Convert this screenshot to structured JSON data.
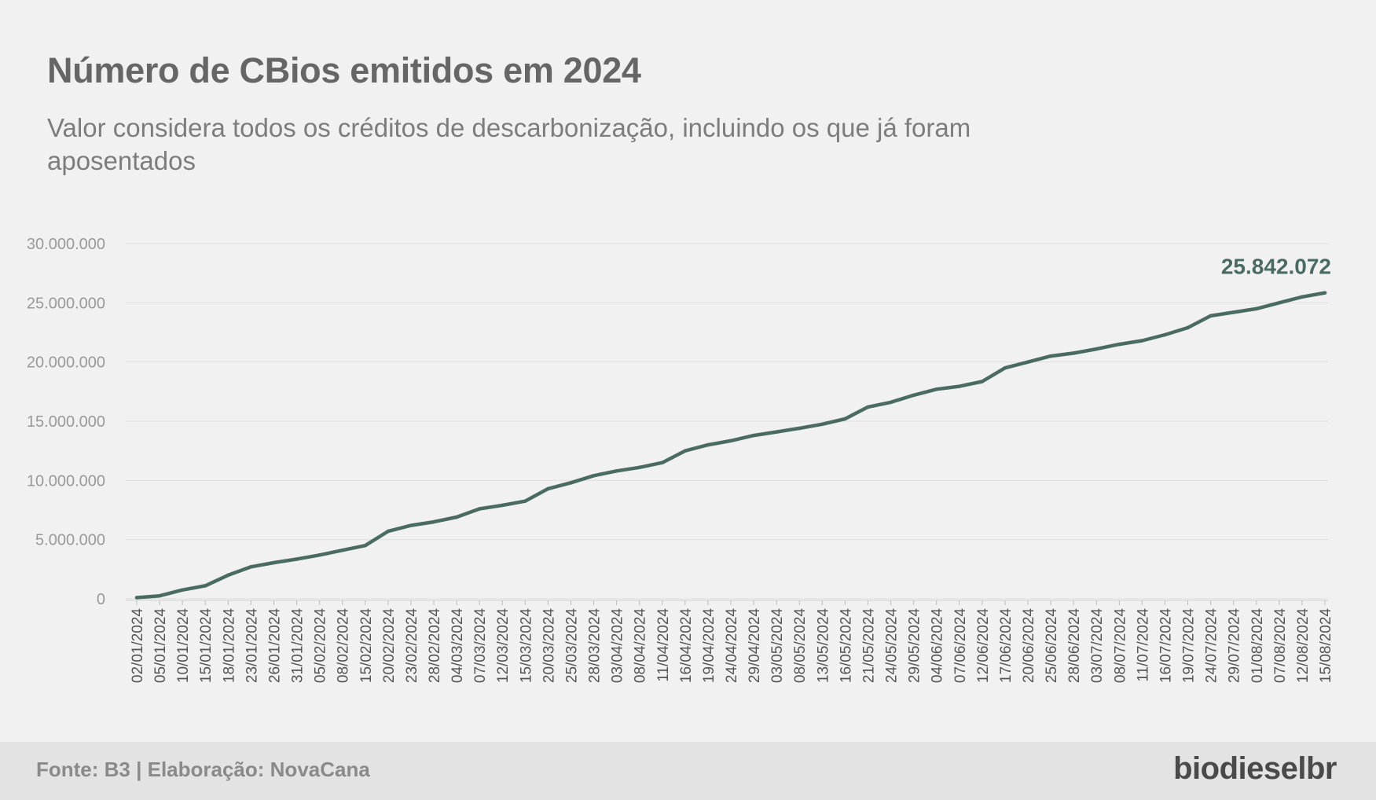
{
  "header": {
    "title": "Número de CBios emitidos em 2024",
    "subtitle": "Valor considera todos os créditos de descarbonização, incluindo os que já foram aposentados"
  },
  "footer": {
    "source": "Fonte: B3 | Elaboração: NovaCana",
    "logo_text": "biodieselbr"
  },
  "colors": {
    "line": "#4a6b63",
    "grid": "#dedede",
    "tick_text": "#999999",
    "date_text": "#555555",
    "background": "#f1f1f1"
  },
  "chart_data": {
    "type": "line",
    "title": "Número de CBios emitidos em 2024",
    "subtitle": "Valor considera todos os créditos de descarbonização, incluindo os que já foram aposentados",
    "xlabel": "",
    "ylabel": "",
    "ylim": [
      0,
      30000000
    ],
    "yticks": [
      0,
      5000000,
      10000000,
      15000000,
      20000000,
      25000000,
      30000000
    ],
    "ytick_labels": [
      "0",
      "5.000.000",
      "10.000.000",
      "15.000.000",
      "20.000.000",
      "25.000.000",
      "30.000.000"
    ],
    "grid": true,
    "end_label": "25.842.072",
    "x_tick_labels": [
      "02/01/2024",
      "05/01/2024",
      "10/01/2024",
      "15/01/2024",
      "18/01/2024",
      "23/01/2024",
      "26/01/2024",
      "31/01/2024",
      "05/02/2024",
      "08/02/2024",
      "15/02/2024",
      "20/02/2024",
      "23/02/2024",
      "28/02/2024",
      "04/03/2024",
      "07/03/2024",
      "12/03/2024",
      "15/03/2024",
      "20/03/2024",
      "25/03/2024",
      "28/03/2024",
      "03/04/2024",
      "08/04/2024",
      "11/04/2024",
      "16/04/2024",
      "19/04/2024",
      "24/04/2024",
      "29/04/2024",
      "03/05/2024",
      "08/05/2024",
      "13/05/2024",
      "16/05/2024",
      "21/05/2024",
      "24/05/2024",
      "29/05/2024",
      "04/06/2024",
      "07/06/2024",
      "12/06/2024",
      "17/06/2024",
      "20/06/2024",
      "25/06/2024",
      "28/06/2024",
      "03/07/2024",
      "08/07/2024",
      "11/07/2024",
      "16/07/2024",
      "19/07/2024",
      "24/07/2024",
      "29/07/2024",
      "01/08/2024",
      "07/08/2024",
      "12/08/2024",
      "15/08/2024"
    ],
    "series": [
      {
        "values": [
          100000,
          250000,
          750000,
          1100000,
          2000000,
          2700000,
          3050000,
          3350000,
          3700000,
          4100000,
          4500000,
          5700000,
          6200000,
          6500000,
          6900000,
          7600000,
          7900000,
          8250000,
          9300000,
          9800000,
          10400000,
          10800000,
          11100000,
          11500000,
          12500000,
          13000000,
          13350000,
          13800000,
          14100000,
          14400000,
          14750000,
          15200000,
          16200000,
          16600000,
          17200000,
          17700000,
          17950000,
          18350000,
          19500000,
          20000000,
          20500000,
          20750000,
          21100000,
          21500000,
          21800000,
          22300000,
          22900000,
          23900000,
          24200000,
          24500000,
          25000000,
          25500000,
          25842072
        ]
      }
    ]
  }
}
